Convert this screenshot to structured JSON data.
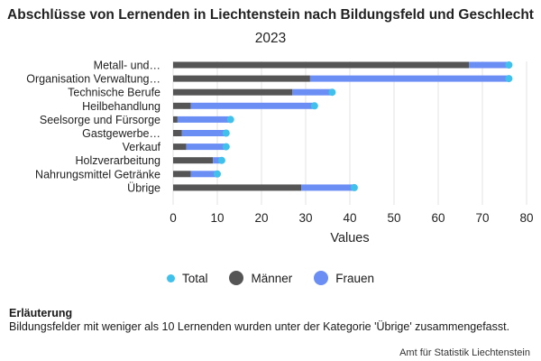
{
  "header": {
    "title": "Abschlüsse von Lernenden in Liechtenstein nach Bildungsfeld und Geschlecht",
    "subtitle": "2023"
  },
  "legend": {
    "total": "Total",
    "maenner": "Männer",
    "frauen": "Frauen"
  },
  "note": {
    "title": "Erläuterung",
    "text": "Bildungsfelder mit weniger als 10 Lernenden wurden unter der Kategorie 'Übrige' zusammengefasst."
  },
  "source": "Amt für Statistik Liechtenstein",
  "colors": {
    "maenner": "#555555",
    "frauen": "#6b8ef5",
    "total": "#3fc1ec"
  },
  "chart_data": {
    "type": "bar",
    "orientation": "horizontal",
    "stacked": true,
    "categories": [
      "Metall- und…",
      "Organisation Verwaltung…",
      "Technische Berufe",
      "Heilbehandlung",
      "Seelsorge und Fürsorge",
      "Gastgewerbe…",
      "Verkauf",
      "Holzverarbeitung",
      "Nahrungsmittel Getränke",
      "Übrige"
    ],
    "series": [
      {
        "name": "Männer",
        "values": [
          67,
          31,
          27,
          4,
          1,
          2,
          3,
          9,
          4,
          29
        ]
      },
      {
        "name": "Frauen",
        "values": [
          9,
          45,
          9,
          28,
          12,
          10,
          9,
          2,
          6,
          12
        ]
      }
    ],
    "total": {
      "name": "Total",
      "values": [
        76,
        76,
        36,
        32,
        13,
        12,
        12,
        11,
        10,
        41
      ]
    },
    "xlabel": "Values",
    "ylabel": "",
    "xlim": [
      0,
      80
    ],
    "xticks": [
      0,
      10,
      20,
      30,
      40,
      50,
      60,
      70,
      80
    ],
    "grid": "vertical",
    "legend_position": "bottom"
  }
}
